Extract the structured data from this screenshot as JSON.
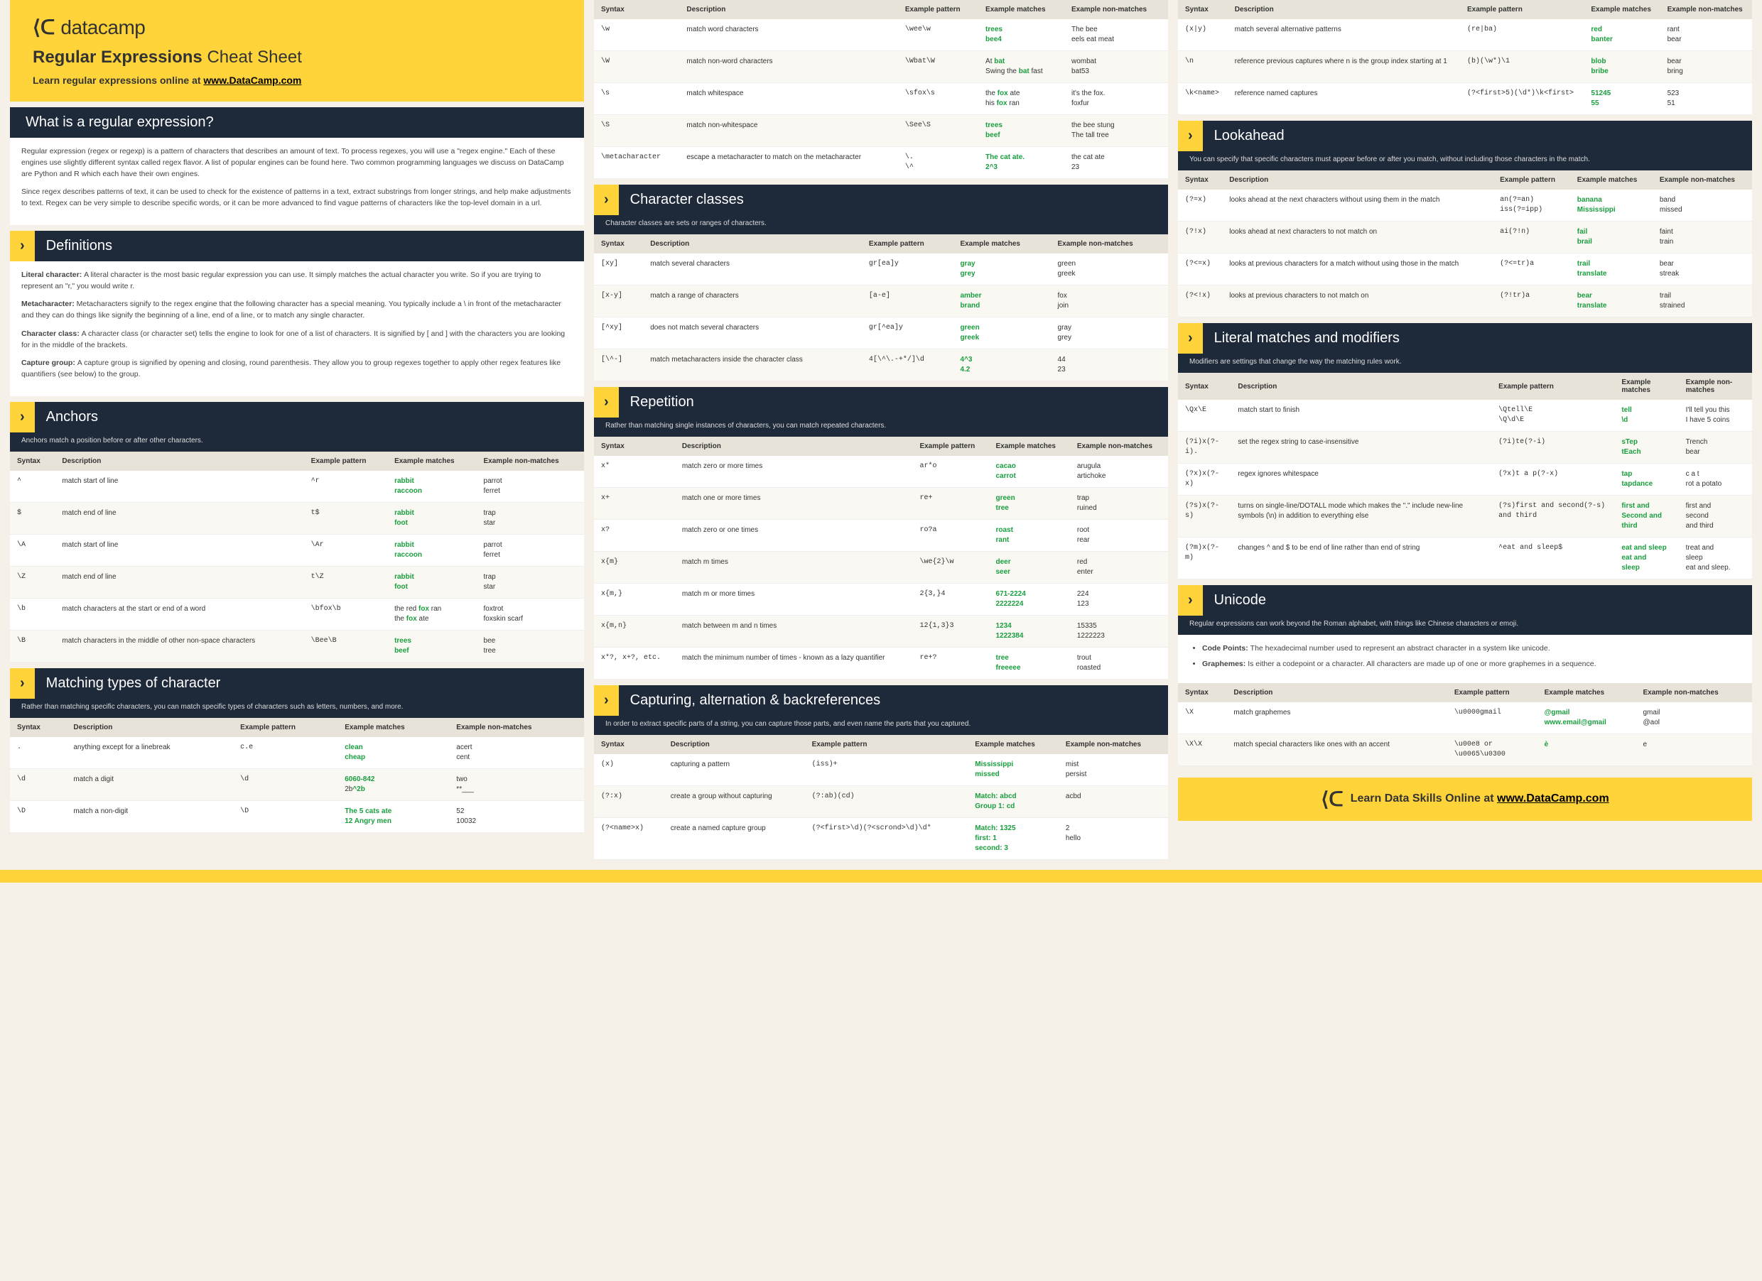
{
  "brand": {
    "name": "datacamp",
    "logo_glyph": "⟨ᑕ"
  },
  "header": {
    "title_bold": "Regular Expressions",
    "title_rest": "Cheat Sheet",
    "sub_prefix": "Learn regular expressions online at ",
    "sub_link": "www.DataCamp.com"
  },
  "footer": {
    "text_prefix": "Learn Data Skills Online at ",
    "text_link": "www.DataCamp.com"
  },
  "colors": {
    "accent": "#ffd43b",
    "dark": "#1e2a3a",
    "bg": "#f5f1e8",
    "match": "#1a9e3f"
  },
  "what_is": {
    "title": "What is a regular expression?",
    "p1": "Regular expression (regex or regexp) is a pattern of characters that describes an amount of text. To process regexes, you will use a \"regex engine.\" Each of these engines use slightly different syntax called regex flavor. A list of popular engines can be found here. Two common programming languages we discuss on DataCamp are Python and R which each have their own engines.",
    "p2": "Since regex describes patterns of text, it can be used to check for the existence of patterns in a text, extract substrings from longer strings, and help make adjustments to text. Regex can be very simple to describe specific words, or it can be more advanced to find vague patterns of characters like the top-level domain in a url."
  },
  "definitions": {
    "title": "Definitions",
    "items": [
      {
        "term": "Literal character:",
        "body": "A literal character is the most basic regular expression you can use. It simply matches the actual character you write. So if you are trying to represent an \"r,\" you would write r."
      },
      {
        "term": "Metacharacter:",
        "body": "Metacharacters signify to the regex engine that the following character has a special meaning. You typically include a \\ in front of the metacharacter and they can do things like signify the beginning of a line, end of a line, or to match any single character."
      },
      {
        "term": "Character class:",
        "body": "A character class (or character set) tells the engine to look for one of a list of characters. It is signified by [ and ] with the characters you are looking for in the middle of the brackets."
      },
      {
        "term": "Capture group:",
        "body": "A capture group is signified by opening and closing, round parenthesis. They allow you to group regexes together to apply other regex features like quantifiers (see below) to the group."
      }
    ]
  },
  "table_headers": [
    "Syntax",
    "Description",
    "Example pattern",
    "Example matches",
    "Example non-matches"
  ],
  "anchors": {
    "title": "Anchors",
    "desc": "Anchors match a position before or after other characters.",
    "rows": [
      [
        "^",
        "match start of line",
        "^r",
        "rabbit\nraccoon",
        "parrot\nferret"
      ],
      [
        "$",
        "match end of line",
        "t$",
        "rabbit\nfoot",
        "trap\nstar"
      ],
      [
        "\\A",
        "match start of line",
        "\\Ar",
        "rabbit\nraccoon",
        "parrot\nferret"
      ],
      [
        "\\Z",
        "match end of line",
        "t\\Z",
        "rabbit\nfoot",
        "trap\nstar"
      ],
      [
        "\\b",
        "match characters at the start or end of a word",
        "\\bfox\\b",
        "the red |fox| ran\nthe |fox| ate",
        "foxtrot\nfoxskin scarf"
      ],
      [
        "\\B",
        "match characters in the middle of other non-space characters",
        "\\Bee\\B",
        "trees\nbeef",
        "bee\ntree"
      ]
    ]
  },
  "matching_types": {
    "title": "Matching types of character",
    "desc": "Rather than matching specific characters, you can match specific types of characters such as letters, numbers, and more.",
    "rows": [
      [
        ".",
        "anything except for a linebreak",
        "c.e",
        "clean\ncheap",
        "acert\ncent"
      ],
      [
        "\\d",
        "match a digit",
        "\\d",
        "6060-842\n2b|^2b",
        "two\n**___"
      ],
      [
        "\\D",
        "match a non-digit",
        "\\D",
        "The 5 cats ate\n12 Angry men",
        "52\n10032"
      ]
    ]
  },
  "matching_types_cont": {
    "rows": [
      [
        "\\w",
        "match word characters",
        "\\wee\\w",
        "trees\nbee4",
        "The bee\neels eat meat"
      ],
      [
        "\\W",
        "match non-word characters",
        "\\Wbat\\W",
        "At |bat|\nSwing the |bat| fast",
        "wombat\nbat53"
      ],
      [
        "\\s",
        "match whitespace",
        "\\sfox\\s",
        "the |fox| ate\nhis |fox| ran",
        "it's the fox.\nfoxfur"
      ],
      [
        "\\S",
        "match non-whitespace",
        "\\See\\S",
        "trees\nbeef",
        "the bee stung\nThe tall tree"
      ],
      [
        "\\metacharacter",
        "escape a metacharacter to match on the metacharacter",
        "\\.\n\\^",
        "The cat ate.\n2^3",
        "the cat ate\n23"
      ]
    ]
  },
  "char_classes": {
    "title": "Character classes",
    "desc": "Character classes are sets or ranges of characters.",
    "rows": [
      [
        "[xy]",
        "match several characters",
        "gr[ea]y",
        "gray\ngrey",
        "green\ngreek"
      ],
      [
        "[x-y]",
        "match a range of characters",
        "[a-e]",
        "amber\nbrand",
        "fox\njoin"
      ],
      [
        "[^xy]",
        "does not match several characters",
        "gr[^ea]y",
        "green\ngreek",
        "gray\ngrey"
      ],
      [
        "[\\^-]",
        "match metacharacters inside the character class",
        "4[\\^\\.-+*/]\\d",
        "4^3\n4.2",
        "44\n23"
      ]
    ]
  },
  "repetition": {
    "title": "Repetition",
    "desc": "Rather than matching single instances of characters, you can match repeated characters.",
    "rows": [
      [
        "x*",
        "match zero or more times",
        "ar*o",
        "cacao\ncarrot",
        "arugula\nartichoke"
      ],
      [
        "x+",
        "match one or more times",
        "re+",
        "green\ntree",
        "trap\nruined"
      ],
      [
        "x?",
        "match zero or one times",
        "ro?a",
        "roast\nrant",
        "root\nrear"
      ],
      [
        "x{m}",
        "match m times",
        "\\we{2}\\w",
        "deer\nseer",
        "red\nenter"
      ],
      [
        "x{m,}",
        "match m or more times",
        "2{3,}4",
        "671-2224\n2222224",
        "224\n123"
      ],
      [
        "x{m,n}",
        "match between m and n times",
        "12{1,3}3",
        "1234\n1222384",
        "15335\n1222223"
      ],
      [
        "x*?, x+?, etc.",
        "match the minimum number of times - known as a lazy quantifier",
        "re+?",
        "tree\nfreeeee",
        "trout\nroasted"
      ]
    ]
  },
  "capturing": {
    "title": "Capturing, alternation & backreferences",
    "desc": "In order to extract specific parts of a string, you can capture those parts, and even name the parts that you captured.",
    "rows": [
      [
        "(x)",
        "capturing a pattern",
        "(iss)+",
        "Mississippi\nmissed",
        "mist\npersist"
      ],
      [
        "(?:x)",
        "create a group without capturing",
        "(?:ab)(cd)",
        "Match: abcd\nGroup 1: cd",
        "acbd"
      ],
      [
        "(?<name>x)",
        "create a named capture group",
        "(?<first>\\d)(?<scrond>\\d)\\d*",
        "Match: 1325\nfirst: 1\nsecond: 3",
        "2\nhello"
      ]
    ]
  },
  "capturing_cont": {
    "rows": [
      [
        "(x|y)",
        "match several alternative patterns",
        "(re|ba)",
        "red\nbanter",
        "rant\nbear"
      ],
      [
        "\\n",
        "reference previous captures where n is the group index starting at 1",
        "(b)(\\w*)\\1",
        "blob\nbribe",
        "bear\nbring"
      ],
      [
        "\\k<name>",
        "reference named captures",
        "(?<first>5)(\\d*)\\k<first>",
        "51245\n55",
        "523\n51"
      ]
    ]
  },
  "lookahead": {
    "title": "Lookahead",
    "desc": "You can specify that specific characters must appear before or after you match, without including those characters in the match.",
    "rows": [
      [
        "(?=x)",
        "looks ahead at the next characters without using them in the match",
        "an(?=an)\niss(?=ipp)",
        "banana\nMississippi",
        "band\nmissed"
      ],
      [
        "(?!x)",
        "looks ahead at next characters to not match on",
        "ai(?!n)",
        "fail\nbrail",
        "faint\ntrain"
      ],
      [
        "(?<=x)",
        "looks at previous characters for a match without using those in the match",
        "(?<=tr)a",
        "trail\ntranslate",
        "bear\nstreak"
      ],
      [
        "(?<!x)",
        "looks at previous characters to not match on",
        "(?!tr)a",
        "bear\ntranslate",
        "trail\nstrained"
      ]
    ]
  },
  "literal_mod": {
    "title": "Literal matches and modifiers",
    "desc": "Modifiers are settings that change the way the matching rules work.",
    "rows": [
      [
        "\\Qx\\E",
        "match start to finish",
        "\\Qtell\\E\n\\Q\\d\\E",
        "tell\n\\d",
        "I'll tell you this\nI have 5 coins"
      ],
      [
        "(?i)x(?-i).",
        "set the regex string to case-insensitive",
        "(?i)te(?-i)",
        "sTep\ntEach",
        "Trench\nbear"
      ],
      [
        "(?x)x(?-x)",
        "regex ignores whitespace",
        "(?x)t a p(?-x)",
        "tap\ntapdance",
        "c a t\nrot a potato"
      ],
      [
        "(?s)x(?-s)",
        "turns on single-line/DOTALL mode which makes the \".\" include new-line symbols (\\n) in addition to everything else",
        "(?s)first and second(?-s) and third",
        "first and\nSecond and third",
        "first and\nsecond\nand third"
      ],
      [
        "(?m)x(?-m)",
        "changes ^ and $ to be end of line rather than end of string",
        "^eat and sleep$",
        "eat and sleep\neat and\nsleep",
        "treat and\nsleep\neat and sleep."
      ]
    ]
  },
  "unicode": {
    "title": "Unicode",
    "desc": "Regular expressions can work beyond the Roman alphabet, with things like Chinese characters or emoji.",
    "bullets": [
      {
        "term": "Code Points:",
        "body": "The hexadecimal number used to represent an abstract character in a system like unicode."
      },
      {
        "term": "Graphemes:",
        "body": "Is either a codepoint or a character. All characters are made up of one or more graphemes in a sequence."
      }
    ],
    "rows": [
      [
        "\\X",
        "match graphemes",
        "\\u0000gmail",
        "@gmail\nwww.email@gmail",
        "gmail\n@aol"
      ],
      [
        "\\X\\X",
        "match special characters like ones with an accent",
        "\\u00e8 or\n\\u0065\\u0300",
        "è",
        "e"
      ]
    ]
  }
}
